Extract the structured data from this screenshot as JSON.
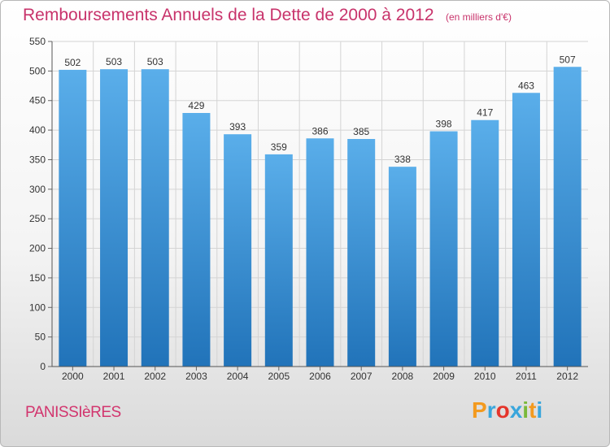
{
  "chart_data": {
    "type": "bar",
    "title": "Remboursements Annuels de la Dette de 2000 à 2012",
    "subtitle": "(en milliers d'€)",
    "xlabel": "",
    "ylabel": "",
    "categories": [
      "2000",
      "2001",
      "2002",
      "2003",
      "2004",
      "2005",
      "2006",
      "2007",
      "2008",
      "2009",
      "2010",
      "2011",
      "2012"
    ],
    "values": [
      502,
      503,
      503,
      429,
      393,
      359,
      386,
      385,
      338,
      398,
      417,
      463,
      507
    ],
    "ylim": [
      0,
      550
    ],
    "yticks": [
      0,
      50,
      100,
      150,
      200,
      250,
      300,
      350,
      400,
      450,
      500,
      550
    ],
    "grid": true,
    "bar_color": "#3c94da"
  },
  "footer": {
    "commune": "PANISSIèRES",
    "logo": "Proxiti"
  },
  "colors": {
    "title": "#c8336b",
    "logo": [
      "#f39a1e",
      "#3aa6dc",
      "#e5352b",
      "#3aa6dc",
      "#7ab93a",
      "#f39a1e",
      "#3aa6dc"
    ]
  }
}
